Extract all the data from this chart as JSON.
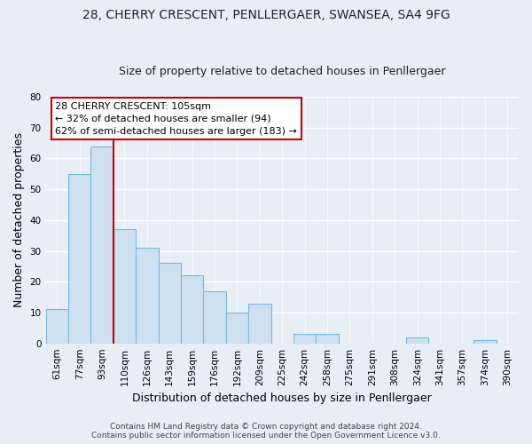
{
  "title1": "28, CHERRY CRESCENT, PENLLERGAER, SWANSEA, SA4 9FG",
  "title2": "Size of property relative to detached houses in Penllergaer",
  "xlabel": "Distribution of detached houses by size in Penllergaer",
  "ylabel": "Number of detached properties",
  "bar_labels": [
    "61sqm",
    "77sqm",
    "93sqm",
    "110sqm",
    "126sqm",
    "143sqm",
    "159sqm",
    "176sqm",
    "192sqm",
    "209sqm",
    "225sqm",
    "242sqm",
    "258sqm",
    "275sqm",
    "291sqm",
    "308sqm",
    "324sqm",
    "341sqm",
    "357sqm",
    "374sqm",
    "390sqm"
  ],
  "bar_values": [
    11,
    55,
    64,
    37,
    31,
    26,
    22,
    17,
    10,
    13,
    0,
    3,
    3,
    0,
    0,
    0,
    2,
    0,
    0,
    1,
    0
  ],
  "bar_color": "#cde0f0",
  "bar_edge_color": "#7ab8d9",
  "vline_color": "#cc0000",
  "vline_x_index": 2.5,
  "ylim": [
    0,
    80
  ],
  "yticks": [
    0,
    10,
    20,
    30,
    40,
    50,
    60,
    70,
    80
  ],
  "annotation_text_line1": "28 CHERRY CRESCENT: 105sqm",
  "annotation_text_line2": "← 32% of detached houses are smaller (94)",
  "annotation_text_line3": "62% of semi-detached houses are larger (183) →",
  "annotation_box_color": "#ffffff",
  "annotation_box_edge_color": "#cc0000",
  "footer_text": "Contains HM Land Registry data © Crown copyright and database right 2024.\nContains public sector information licensed under the Open Government Licence v3.0.",
  "background_color": "#e8eef5",
  "grid_color": "#ffffff",
  "title1_fontsize": 10,
  "title2_fontsize": 9,
  "axis_label_fontsize": 9,
  "tick_fontsize": 7.5,
  "annotation_fontsize": 8,
  "footer_fontsize": 6.5
}
